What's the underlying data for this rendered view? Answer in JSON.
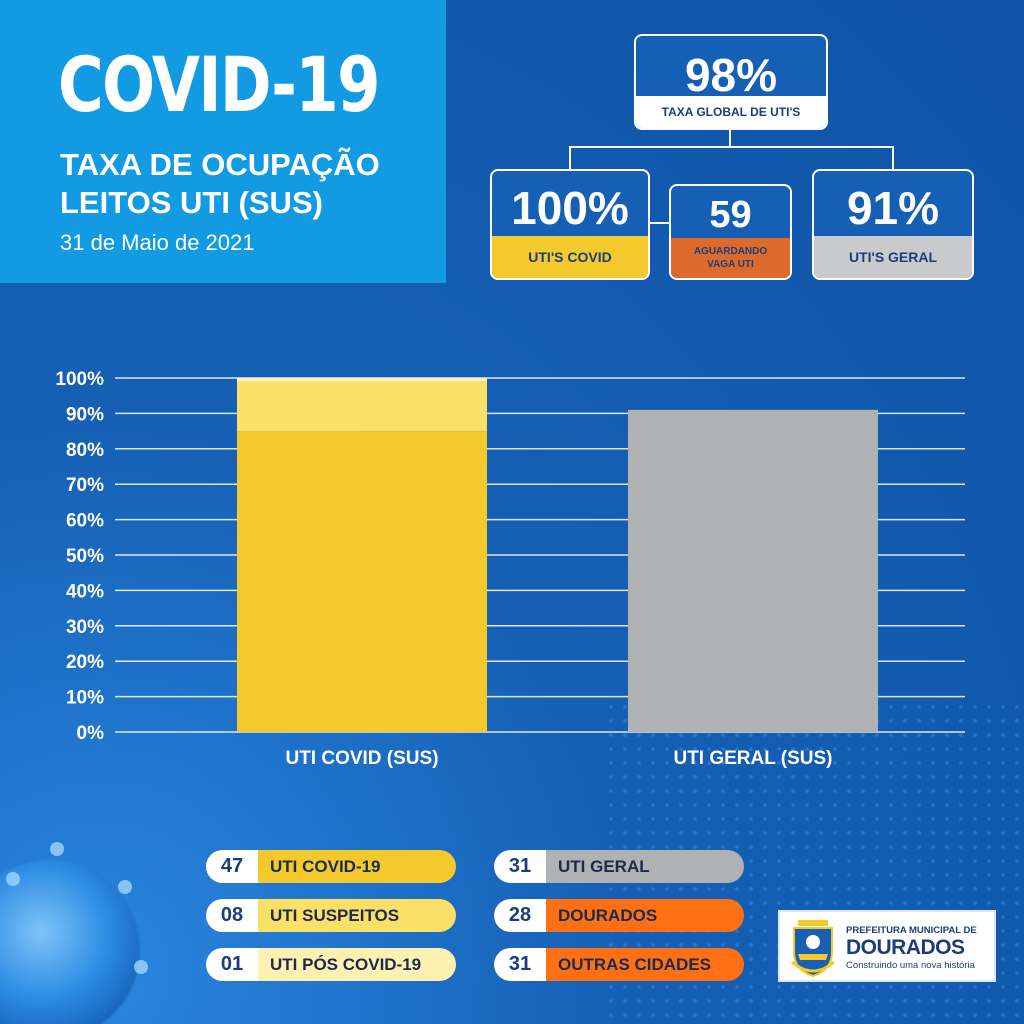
{
  "header": {
    "title": "COVID-19",
    "subtitle_line1": "TAXA DE OCUPAÇÃO",
    "subtitle_line2": "LEITOS UTI (SUS)",
    "date": "31 de Maio de 2021"
  },
  "kpis": {
    "global": {
      "value": "98%",
      "label": "TAXA GLOBAL DE UTI'S"
    },
    "covid": {
      "value": "100%",
      "label": "UTI'S COVID",
      "color": "#f3c92b"
    },
    "waiting": {
      "value": "59",
      "label_line1": "AGUARDANDO",
      "label_line2": "VAGA UTI",
      "color": "#dc6a2c"
    },
    "geral": {
      "value": "91%",
      "label": "UTI'S GERAL",
      "color": "#c8cacc"
    }
  },
  "chart_data": {
    "type": "bar",
    "categories": [
      "UTI COVID (SUS)",
      "UTI GERAL (SUS)"
    ],
    "values": [
      100,
      91
    ],
    "ylim": [
      0,
      100
    ],
    "yticks": [
      0,
      10,
      20,
      30,
      40,
      50,
      60,
      70,
      80,
      90,
      100
    ],
    "ytick_labels": [
      "0%",
      "10%",
      "20%",
      "30%",
      "40%",
      "50%",
      "60%",
      "70%",
      "80%",
      "90%",
      "100%"
    ],
    "grid": true,
    "colors": [
      "#f3c92b",
      "#b0b1b3"
    ],
    "stack_segments_first_bar": [
      {
        "value": 85,
        "color": "#f3c92b"
      },
      {
        "value": 14,
        "color": "#fbe067"
      },
      {
        "value": 1,
        "color": "#fdf0b0"
      }
    ]
  },
  "legend": {
    "left": [
      {
        "count": "47",
        "label": "UTI COVID-19",
        "color": "#f3c92b"
      },
      {
        "count": "08",
        "label": "UTI SUSPEITOS",
        "color": "#fbe067"
      },
      {
        "count": "01",
        "label": "UTI PÓS COVID-19",
        "color": "#fdf0b0"
      }
    ],
    "right": [
      {
        "count": "31",
        "label": "UTI GERAL",
        "color": "#b0b1b3"
      },
      {
        "count": "28",
        "label": "DOURADOS",
        "color": "#ff6f14"
      },
      {
        "count": "31",
        "label": "OUTRAS CIDADES",
        "color": "#ff6f14"
      }
    ]
  },
  "logo": {
    "line1": "PREFEITURA MUNICIPAL DE",
    "line2": "DOURADOS",
    "line3": "Construindo uma nova história"
  }
}
